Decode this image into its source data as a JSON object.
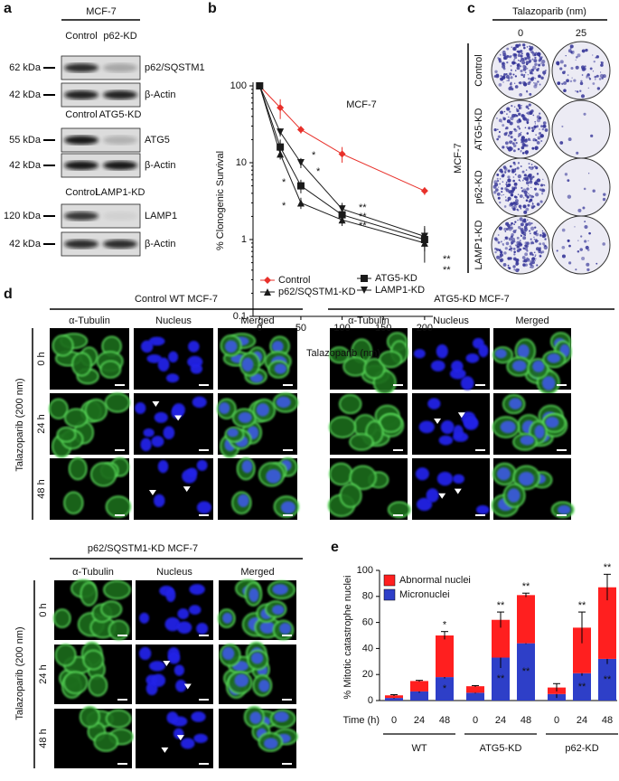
{
  "figure": {
    "panel_labels": [
      "a",
      "b",
      "c",
      "d",
      "e"
    ],
    "panel_a": {
      "cell_line": "MCF-7",
      "blots": [
        {
          "lanes": [
            "Control",
            "p62-KD"
          ],
          "rows": [
            {
              "size": "62 kDa",
              "protein": "p62/SQSTM1"
            },
            {
              "size": "42 kDa",
              "protein": "β-Actin"
            }
          ]
        },
        {
          "lanes": [
            "Control",
            "ATG5-KD"
          ],
          "rows": [
            {
              "size": "55 kDa",
              "protein": "ATG5"
            },
            {
              "size": "42 kDa",
              "protein": "β-Actin"
            }
          ]
        },
        {
          "lanes": [
            "Control",
            "LAMP1-KD"
          ],
          "rows": [
            {
              "size": "120 kDa",
              "protein": "LAMP1"
            },
            {
              "size": "42 kDa",
              "protein": "β-Actin"
            }
          ]
        }
      ]
    },
    "panel_c": {
      "title": "Talazoparib (nm)",
      "doses": [
        "0",
        "25"
      ],
      "side_label": "MCF-7",
      "rows": [
        "Control",
        "ATG5-KD",
        "p62-KD",
        "LAMP1-KD"
      ]
    },
    "panel_d": {
      "side_label": "Talazoparib (200 nm)",
      "rows": [
        "0 h",
        "24 h",
        "48 h"
      ],
      "columns": [
        "α-Tubulin",
        "Nucleus",
        "Merged"
      ],
      "groups": [
        "Control WT MCF-7",
        "ATG5-KD MCF-7",
        "p62/SQSTM1-KD MCF-7"
      ]
    }
  },
  "chart_data": [
    {
      "type": "line",
      "title": "MCF-7",
      "x_label": "Talazoparib (nm)",
      "y_label": "% Clonogenic Survival",
      "x": [
        0,
        25,
        50,
        100,
        200
      ],
      "xlim": [
        -8,
        210
      ],
      "xticks": [
        0,
        50,
        100,
        150,
        200
      ],
      "ylim": [
        0.1,
        100
      ],
      "yticks": [
        0.1,
        1,
        10,
        100
      ],
      "y_scale": "log",
      "legend": "lower center",
      "series": [
        {
          "name": "Control",
          "color": "#e8302a",
          "marker": "diamond",
          "values": [
            100,
            52,
            27,
            13,
            4.3
          ],
          "errors": [
            0,
            15,
            3,
            3,
            0.5
          ]
        },
        {
          "name": "p62/SQSTM1-KD",
          "color": "#1a1a1a",
          "marker": "triangle",
          "values": [
            100,
            13,
            3,
            1.8,
            0.9
          ],
          "errors": [
            0,
            2,
            0.5,
            0.3,
            0.2
          ]
        },
        {
          "name": "ATG5-KD",
          "color": "#1a1a1a",
          "marker": "square",
          "values": [
            100,
            16,
            5,
            2.1,
            1.0
          ],
          "errors": [
            0,
            4,
            1,
            0.5,
            0.5
          ]
        },
        {
          "name": "LAMP1-KD",
          "color": "#1a1a1a",
          "marker": "triangle-down",
          "values": [
            100,
            25,
            10,
            2.5,
            1.1
          ],
          "errors": [
            0,
            3,
            1.5,
            0.5,
            0.3
          ]
        }
      ],
      "annotations": [
        "*",
        "*",
        "*",
        "*",
        "**",
        "**",
        "**",
        "**",
        "**"
      ]
    },
    {
      "type": "stacked_bar",
      "x_label": "Time (h)",
      "y_label": "% Mitotic catastrophe nuclei",
      "categories": [
        "0",
        "24",
        "48",
        "0",
        "24",
        "48",
        "0",
        "24",
        "48"
      ],
      "groups": [
        "WT",
        "ATG5-KD",
        "p62-KD"
      ],
      "ylim": [
        0,
        100
      ],
      "yticks": [
        0,
        20,
        40,
        60,
        80,
        100
      ],
      "series": [
        {
          "name": "Micronuclei",
          "color": "#2e3fc8",
          "values": [
            2,
            7,
            18,
            6,
            33,
            44,
            5,
            21,
            32
          ],
          "errors": [
            0.5,
            1,
            1,
            0.5,
            8,
            0.5,
            3,
            2,
            4
          ]
        },
        {
          "name": "Abnormal nuclei",
          "color": "#ff1f1f",
          "values": [
            2,
            8,
            32,
            5,
            29,
            37,
            5,
            35,
            55
          ],
          "errors": [
            0.5,
            0.5,
            3,
            0.5,
            6,
            1.5,
            3,
            12,
            10
          ]
        }
      ],
      "top_marks": [
        null,
        null,
        "*",
        null,
        "**",
        "**",
        null,
        "**",
        "**"
      ],
      "inner_marks": [
        null,
        null,
        "*",
        null,
        "**",
        "**",
        null,
        "**",
        "**"
      ]
    }
  ]
}
